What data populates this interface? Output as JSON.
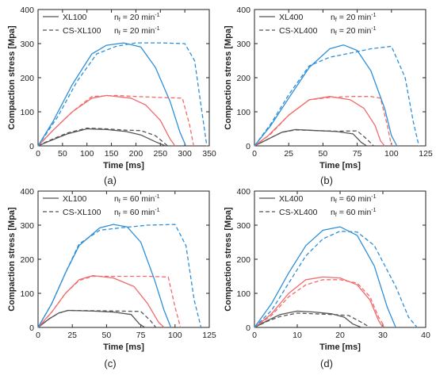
{
  "colors": {
    "gray": "#555555",
    "red": "#f26a6a",
    "blue": "#2e8fd8"
  },
  "chart_data": [
    {
      "id": "a",
      "type": "line",
      "subfig_label": "(a)",
      "xlabel": "Time [ms]",
      "ylabel": "Compaction stress [Mpa]",
      "xlim": [
        0,
        350
      ],
      "ylim": [
        0,
        400
      ],
      "xticks": [
        0,
        50,
        100,
        150,
        200,
        250,
        300,
        350
      ],
      "yticks": [
        0,
        100,
        200,
        300,
        400
      ],
      "legend": [
        {
          "name": "XL100",
          "style": "solid",
          "cond": "n",
          "sub": "f",
          "condval": " = 20 min",
          "sup": "-1"
        },
        {
          "name": "CS-XL100",
          "style": "dashed",
          "cond": "n",
          "sub": "f",
          "condval": " = 20 min",
          "sup": "-1"
        }
      ],
      "series": [
        {
          "color": "gray",
          "style": "solid",
          "x": [
            0,
            20,
            60,
            100,
            140,
            180,
            210,
            240,
            260
          ],
          "y": [
            0,
            12,
            35,
            50,
            48,
            42,
            32,
            12,
            0
          ]
        },
        {
          "color": "gray",
          "style": "dashed",
          "x": [
            0,
            20,
            60,
            100,
            140,
            180,
            210,
            240,
            265
          ],
          "y": [
            0,
            14,
            38,
            52,
            50,
            46,
            45,
            30,
            0
          ]
        },
        {
          "color": "red",
          "style": "solid",
          "x": [
            0,
            30,
            70,
            110,
            140,
            190,
            220,
            250,
            270,
            280
          ],
          "y": [
            0,
            45,
            100,
            140,
            148,
            140,
            120,
            75,
            20,
            0
          ]
        },
        {
          "color": "red",
          "style": "dashed",
          "x": [
            0,
            30,
            70,
            110,
            160,
            200,
            250,
            295,
            310,
            318
          ],
          "y": [
            0,
            45,
            100,
            145,
            148,
            145,
            142,
            140,
            60,
            0
          ]
        },
        {
          "color": "blue",
          "style": "solid",
          "x": [
            0,
            30,
            70,
            110,
            140,
            175,
            210,
            240,
            270,
            290,
            302
          ],
          "y": [
            0,
            70,
            180,
            270,
            295,
            302,
            290,
            230,
            130,
            40,
            0
          ]
        },
        {
          "color": "blue",
          "style": "dashed",
          "x": [
            0,
            40,
            80,
            120,
            160,
            200,
            250,
            300,
            320,
            335,
            345
          ],
          "y": [
            0,
            85,
            190,
            270,
            292,
            302,
            302,
            300,
            250,
            100,
            0
          ]
        }
      ]
    },
    {
      "id": "b",
      "type": "line",
      "subfig_label": "(b)",
      "xlabel": "Time [ms]",
      "ylabel": "Compaction stress [Mpa]",
      "xlim": [
        0,
        125
      ],
      "ylim": [
        0,
        400
      ],
      "xticks": [
        0,
        25,
        50,
        75,
        100,
        125
      ],
      "yticks": [
        0,
        100,
        200,
        300,
        400
      ],
      "legend": [
        {
          "name": "XL400",
          "style": "solid",
          "cond": "n",
          "sub": "f",
          "condval": " = 20 min",
          "sup": "-1"
        },
        {
          "name": "CS-XL400",
          "style": "dashed",
          "cond": "n",
          "sub": "f",
          "condval": " = 20 min",
          "sup": "-1"
        }
      ],
      "series": [
        {
          "color": "gray",
          "style": "solid",
          "x": [
            0,
            10,
            20,
            30,
            45,
            60,
            72,
            78,
            82
          ],
          "y": [
            0,
            20,
            40,
            48,
            45,
            42,
            35,
            10,
            0
          ]
        },
        {
          "color": "gray",
          "style": "dashed",
          "x": [
            0,
            10,
            20,
            30,
            45,
            60,
            75,
            82,
            87
          ],
          "y": [
            0,
            20,
            40,
            47,
            45,
            43,
            44,
            20,
            0
          ]
        },
        {
          "color": "red",
          "style": "solid",
          "x": [
            0,
            10,
            25,
            40,
            55,
            70,
            80,
            88,
            92,
            95
          ],
          "y": [
            0,
            30,
            90,
            135,
            145,
            135,
            110,
            60,
            15,
            0
          ]
        },
        {
          "color": "red",
          "style": "dashed",
          "x": [
            0,
            12,
            25,
            40,
            55,
            70,
            85,
            92,
            97,
            100
          ],
          "y": [
            0,
            35,
            90,
            135,
            142,
            145,
            145,
            140,
            60,
            0
          ]
        },
        {
          "color": "blue",
          "style": "solid",
          "x": [
            0,
            12,
            25,
            40,
            55,
            65,
            75,
            85,
            95,
            100,
            104
          ],
          "y": [
            0,
            60,
            140,
            230,
            285,
            296,
            280,
            220,
            110,
            30,
            0
          ]
        },
        {
          "color": "blue",
          "style": "dashed",
          "x": [
            0,
            12,
            25,
            40,
            55,
            70,
            85,
            100,
            110,
            116,
            120
          ],
          "y": [
            0,
            65,
            150,
            235,
            260,
            272,
            285,
            292,
            200,
            70,
            0
          ]
        }
      ]
    },
    {
      "id": "c",
      "type": "line",
      "subfig_label": "(c)",
      "xlabel": "Time [ms]",
      "ylabel": "Compaction stress [Mpa]",
      "xlim": [
        0,
        125
      ],
      "ylim": [
        0,
        400
      ],
      "xticks": [
        0,
        25,
        50,
        75,
        100,
        125
      ],
      "yticks": [
        0,
        100,
        200,
        300,
        400
      ],
      "legend": [
        {
          "name": "XL100",
          "style": "solid",
          "cond": "n",
          "sub": "f",
          "condval": " = 60 min",
          "sup": "-1"
        },
        {
          "name": "CS-XL100",
          "style": "dashed",
          "cond": "n",
          "sub": "f",
          "condval": " = 60 min",
          "sup": "-1"
        }
      ],
      "series": [
        {
          "color": "gray",
          "style": "solid",
          "x": [
            0,
            8,
            15,
            22,
            40,
            55,
            68,
            74,
            78
          ],
          "y": [
            0,
            25,
            42,
            50,
            48,
            45,
            38,
            10,
            0
          ]
        },
        {
          "color": "gray",
          "style": "dashed",
          "x": [
            0,
            8,
            15,
            22,
            40,
            60,
            75,
            82,
            86
          ],
          "y": [
            0,
            25,
            42,
            50,
            49,
            48,
            47,
            20,
            0
          ]
        },
        {
          "color": "red",
          "style": "solid",
          "x": [
            0,
            10,
            20,
            30,
            40,
            55,
            70,
            80,
            88,
            92
          ],
          "y": [
            0,
            45,
            100,
            140,
            152,
            145,
            120,
            70,
            15,
            0
          ]
        },
        {
          "color": "red",
          "style": "dashed",
          "x": [
            0,
            10,
            20,
            30,
            40,
            60,
            80,
            95,
            100,
            104
          ],
          "y": [
            0,
            45,
            100,
            138,
            150,
            150,
            150,
            148,
            60,
            0
          ]
        },
        {
          "color": "blue",
          "style": "solid",
          "x": [
            0,
            10,
            20,
            30,
            45,
            55,
            65,
            75,
            85,
            92,
            97
          ],
          "y": [
            0,
            70,
            160,
            240,
            292,
            302,
            295,
            250,
            140,
            50,
            0
          ]
        },
        {
          "color": "blue",
          "style": "dashed",
          "x": [
            0,
            10,
            20,
            30,
            45,
            60,
            80,
            100,
            108,
            114,
            119
          ],
          "y": [
            0,
            70,
            160,
            245,
            285,
            292,
            300,
            302,
            240,
            80,
            0
          ]
        }
      ]
    },
    {
      "id": "d",
      "type": "line",
      "subfig_label": "(d)",
      "xlabel": "Time [ms]",
      "ylabel": "Compaction stress [Mpa]",
      "xlim": [
        0,
        40
      ],
      "ylim": [
        0,
        400
      ],
      "xticks": [
        0,
        10,
        20,
        30,
        40
      ],
      "yticks": [
        0,
        100,
        200,
        300,
        400
      ],
      "legend": [
        {
          "name": "XL400",
          "style": "solid",
          "cond": "n",
          "sub": "f",
          "condval": " = 60 min",
          "sup": "-1"
        },
        {
          "name": "CS-XL400",
          "style": "dashed",
          "cond": "n",
          "sub": "f",
          "condval": " = 60 min",
          "sup": "-1"
        }
      ],
      "series": [
        {
          "color": "gray",
          "style": "solid",
          "x": [
            0,
            3,
            6,
            10,
            14,
            18,
            21,
            23,
            25
          ],
          "y": [
            0,
            20,
            38,
            48,
            45,
            40,
            30,
            10,
            0
          ]
        },
        {
          "color": "gray",
          "style": "dashed",
          "x": [
            0,
            3,
            6,
            10,
            14,
            18,
            22,
            25,
            27
          ],
          "y": [
            0,
            18,
            32,
            42,
            40,
            38,
            35,
            15,
            0
          ]
        },
        {
          "color": "red",
          "style": "solid",
          "x": [
            0,
            4,
            8,
            12,
            16,
            20,
            24,
            27,
            29,
            30
          ],
          "y": [
            0,
            40,
            100,
            140,
            148,
            145,
            125,
            80,
            20,
            0
          ]
        },
        {
          "color": "red",
          "style": "dashed",
          "x": [
            0,
            4,
            8,
            12,
            16,
            20,
            24,
            27,
            29,
            30.5
          ],
          "y": [
            0,
            35,
            90,
            125,
            140,
            140,
            130,
            90,
            30,
            0
          ]
        },
        {
          "color": "blue",
          "style": "solid",
          "x": [
            0,
            4,
            8,
            12,
            16,
            20,
            24,
            28,
            31,
            33
          ],
          "y": [
            0,
            70,
            160,
            240,
            285,
            295,
            270,
            180,
            60,
            0
          ]
        },
        {
          "color": "blue",
          "style": "dashed",
          "x": [
            0,
            4,
            8,
            12,
            16,
            20,
            24,
            28,
            33,
            36,
            38
          ],
          "y": [
            0,
            50,
            130,
            210,
            260,
            282,
            280,
            240,
            120,
            30,
            0
          ]
        }
      ]
    }
  ]
}
